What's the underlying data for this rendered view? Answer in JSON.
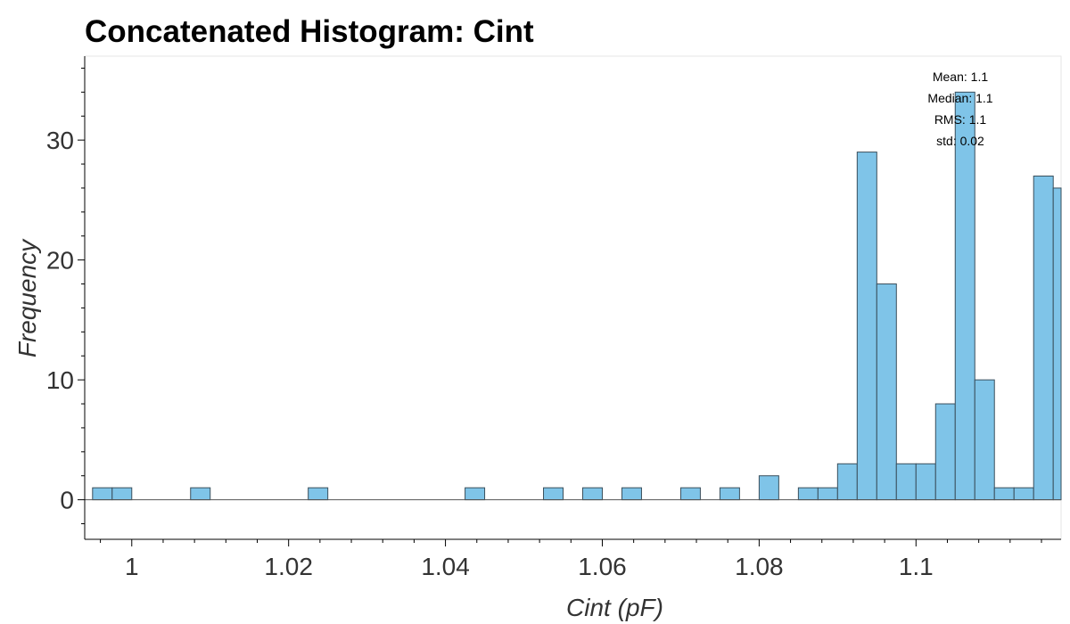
{
  "chart_data": {
    "type": "bar",
    "title": "Concatenated Histogram: Cint",
    "xlabel": "Cint (pF)",
    "ylabel": "Frequency",
    "bin_width": 0.0025,
    "xlim": [
      0.994,
      1.1185
    ],
    "ylim": [
      -3.3,
      37
    ],
    "x_ticks": [
      {
        "value": 1.0,
        "label": "1"
      },
      {
        "value": 1.02,
        "label": "1.02"
      },
      {
        "value": 1.04,
        "label": "1.04"
      },
      {
        "value": 1.06,
        "label": "1.06"
      },
      {
        "value": 1.08,
        "label": "1.08"
      },
      {
        "value": 1.1,
        "label": "1.1"
      }
    ],
    "y_ticks": [
      0,
      10,
      20,
      30
    ],
    "bins": [
      {
        "x": 0.995,
        "count": 1
      },
      {
        "x": 0.9975,
        "count": 1
      },
      {
        "x": 1.0075,
        "count": 1
      },
      {
        "x": 1.0225,
        "count": 1
      },
      {
        "x": 1.0425,
        "count": 1
      },
      {
        "x": 1.0525,
        "count": 1
      },
      {
        "x": 1.0575,
        "count": 1
      },
      {
        "x": 1.0625,
        "count": 1
      },
      {
        "x": 1.07,
        "count": 1
      },
      {
        "x": 1.075,
        "count": 1
      },
      {
        "x": 1.08,
        "count": 2
      },
      {
        "x": 1.085,
        "count": 1
      },
      {
        "x": 1.0875,
        "count": 1
      },
      {
        "x": 1.09,
        "count": 3
      },
      {
        "x": 1.0925,
        "count": 29
      },
      {
        "x": 1.095,
        "count": 18
      },
      {
        "x": 1.0975,
        "count": 3
      },
      {
        "x": 1.1,
        "count": 3
      },
      {
        "x": 1.1025,
        "count": 8
      },
      {
        "x": 1.105,
        "count": 34
      },
      {
        "x": 1.1075,
        "count": 10
      },
      {
        "x": 1.11,
        "count": 1
      },
      {
        "x": 1.1125,
        "count": 1
      },
      {
        "x": 1.115,
        "count": 27
      },
      {
        "x": 1.1175,
        "count": 26
      }
    ],
    "stats": [
      "Mean: 1.1",
      "Median: 1.1",
      "RMS: 1.1",
      "std: 0.02"
    ],
    "bar_color": "#7fc4e8",
    "bar_edge_color": "#3a4f5c",
    "grid": false
  }
}
